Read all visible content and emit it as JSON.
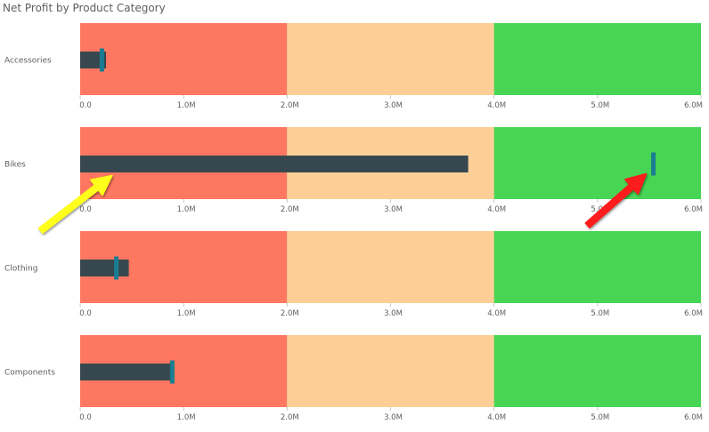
{
  "chart_data": {
    "type": "bullet",
    "title": "Net Profit by Product Category",
    "x_ticks": [
      "0.0",
      "1.0M",
      "2.0M",
      "3.0M",
      "4.0M",
      "5.0M",
      "6.0M"
    ],
    "xlim": [
      0,
      6000000
    ],
    "bands": [
      {
        "from": 0,
        "to": 2000000,
        "color": "#fe7760"
      },
      {
        "from": 2000000,
        "to": 4000000,
        "color": "#fdcf96"
      },
      {
        "from": 4000000,
        "to": 6000000,
        "color": "#48d454"
      }
    ],
    "bar_color": "#37474f",
    "target_color": "#1a7d91",
    "categories": [
      "Accessories",
      "Bikes",
      "Clothing",
      "Components"
    ],
    "values": [
      250000,
      3750000,
      470000,
      900000
    ],
    "targets": [
      210000,
      5540000,
      350000,
      890000
    ],
    "annotations": [
      {
        "type": "arrow",
        "color": "#ffff1a",
        "category": "Bikes",
        "points_to": "actual bar"
      },
      {
        "type": "arrow",
        "color": "#ff1a1a",
        "category": "Bikes",
        "points_to": "target marker"
      }
    ]
  }
}
